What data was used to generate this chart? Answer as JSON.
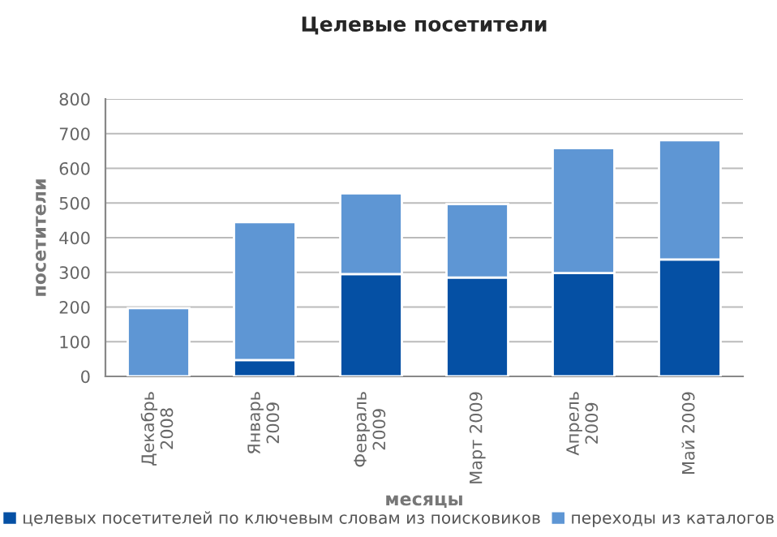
{
  "chart_data": {
    "type": "bar",
    "title": "Целевые посетители",
    "xlabel": "месяцы",
    "ylabel": "посетители",
    "categories": [
      "Декабрь\n2008",
      "Январь\n2009",
      "Февраль\n2009",
      "Март 2009",
      "Апрель\n2009",
      "Май 2009"
    ],
    "stacked": true,
    "series": [
      {
        "name": "целевых посетителей по ключевым словам из поисковиков",
        "color": "#0550a4",
        "values": [
          0,
          47,
          295,
          285,
          298,
          337
        ]
      },
      {
        "name": "переходы из каталогов",
        "color": "#5e96d4",
        "values": [
          197,
          398,
          233,
          212,
          360,
          344
        ]
      }
    ],
    "ylim": [
      0,
      800
    ],
    "yticks": [
      0,
      100,
      200,
      300,
      400,
      500,
      600,
      700,
      800
    ],
    "grid": "y",
    "legend": "bottom"
  }
}
